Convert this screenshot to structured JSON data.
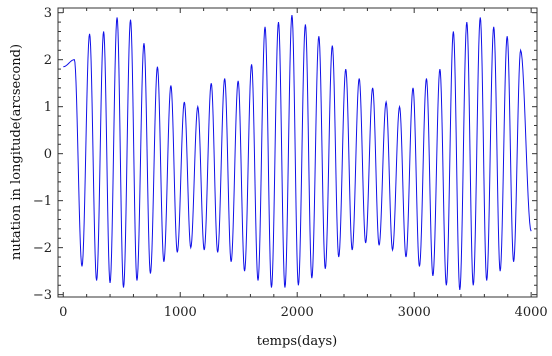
{
  "chart_data": {
    "type": "line",
    "title": "",
    "xlabel": "temps(days)",
    "ylabel": "nutation in longitude(arcsecond)",
    "xlim": [
      -45,
      4050
    ],
    "ylim": [
      -3.05,
      3.1
    ],
    "xticks": [
      0,
      1000,
      2000,
      3000,
      4000
    ],
    "xtick_labels": [
      "0",
      "1000",
      "2000",
      "3000",
      "4000"
    ],
    "yticks": [
      -3,
      -2,
      -1,
      0,
      1,
      2,
      3
    ],
    "ytick_labels": [
      "−3",
      "−2",
      "−1",
      "0",
      "1",
      "2",
      "3"
    ],
    "grid": false,
    "series": [
      {
        "color": "#1010e8",
        "x": [
          0,
          4000
        ],
        "peak_days": [
          95,
          225,
          345,
          460,
          575,
          690,
          805,
          920,
          1035,
          1150,
          1265,
          1380,
          1495,
          1610,
          1725,
          1840,
          1955,
          2070,
          2185,
          2300,
          2415,
          2530,
          2645,
          2760,
          2875,
          2990,
          3105,
          3220,
          3335,
          3450,
          3565,
          3680,
          3795,
          3910
        ],
        "peak_values": [
          2.0,
          2.55,
          2.6,
          2.9,
          2.85,
          2.35,
          1.85,
          1.45,
          1.1,
          1.0,
          1.5,
          1.6,
          1.55,
          1.9,
          2.7,
          2.8,
          2.95,
          2.75,
          2.5,
          2.3,
          1.8,
          1.6,
          1.4,
          1.1,
          1.0,
          1.4,
          1.6,
          1.8,
          2.6,
          2.8,
          2.9,
          2.7,
          2.5,
          2.2
        ],
        "trough_days": [
          160,
          285,
          400,
          515,
          630,
          745,
          860,
          975,
          1090,
          1205,
          1320,
          1435,
          1550,
          1665,
          1780,
          1895,
          2010,
          2125,
          2240,
          2355,
          2470,
          2585,
          2700,
          2815,
          2930,
          3045,
          3160,
          3275,
          3390,
          3505,
          3620,
          3735,
          3850
        ],
        "trough_values": [
          -2.4,
          -2.7,
          -2.75,
          -2.85,
          -2.7,
          -2.55,
          -2.3,
          -2.1,
          -2.0,
          -2.05,
          -2.1,
          -2.3,
          -2.5,
          -2.7,
          -2.85,
          -2.85,
          -2.8,
          -2.65,
          -2.45,
          -2.2,
          -2.05,
          -1.9,
          -1.95,
          -2.05,
          -2.2,
          -2.4,
          -2.6,
          -2.8,
          -2.9,
          -2.8,
          -2.7,
          -2.5,
          -2.3
        ],
        "start_value": 1.85,
        "end_value": -1.65
      }
    ]
  }
}
